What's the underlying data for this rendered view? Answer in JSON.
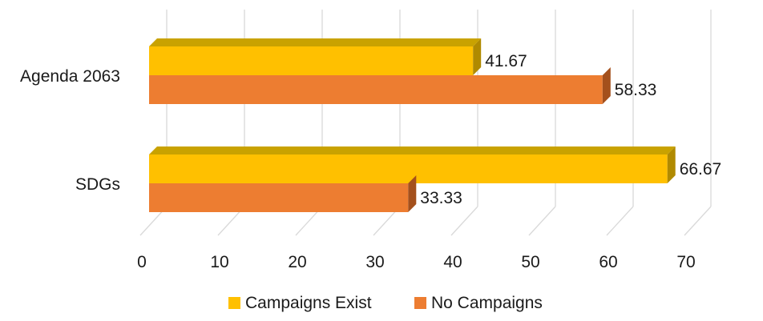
{
  "chart_data": {
    "type": "bar",
    "orientation": "horizontal",
    "style": "3d",
    "categories": [
      "Agenda 2063",
      "SDGs"
    ],
    "series": [
      {
        "name": "Campaigns Exist",
        "values": [
          41.67,
          66.67
        ],
        "color": "#FFC000",
        "top_color": "#C9A200",
        "side_color": "#B08A00"
      },
      {
        "name": "No Campaigns",
        "values": [
          58.33,
          33.33
        ],
        "color": "#ED7D31",
        "top_color": "#C05A20",
        "side_color": "#A4501C"
      }
    ],
    "data_labels": [
      [
        "41.67",
        "66.67"
      ],
      [
        "58.33",
        "33.33"
      ]
    ],
    "xlim": [
      0,
      70
    ],
    "x_ticks": [
      "0",
      "10",
      "20",
      "30",
      "40",
      "50",
      "60",
      "70"
    ],
    "grid": true,
    "gridline_color": "#d9d9d9",
    "legend": {
      "position": "bottom",
      "entries": [
        "Campaigns Exist",
        "No Campaigns"
      ]
    },
    "title": "",
    "xlabel": "",
    "ylabel": ""
  }
}
